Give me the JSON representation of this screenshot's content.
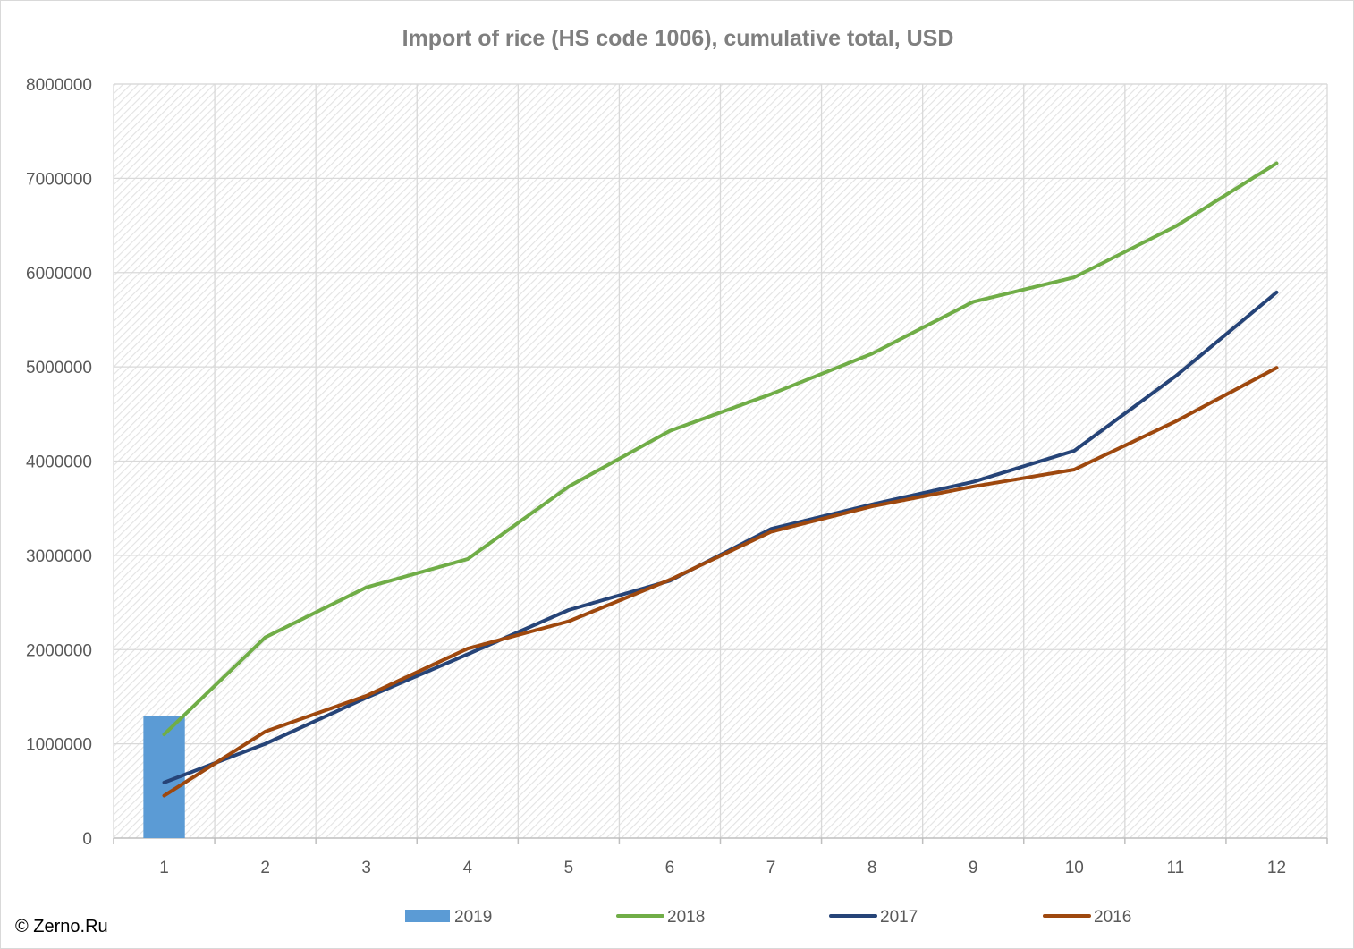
{
  "chart_data": {
    "type": "line",
    "title": "Import of rice (HS code 1006), cumulative total, USD",
    "xlabel": "",
    "ylabel": "",
    "categories": [
      "1",
      "2",
      "3",
      "4",
      "5",
      "6",
      "7",
      "8",
      "9",
      "10",
      "11",
      "12"
    ],
    "ylim": [
      0,
      8000000
    ],
    "yticks": [
      "0",
      "1000000",
      "2000000",
      "3000000",
      "4000000",
      "5000000",
      "6000000",
      "7000000",
      "8000000"
    ],
    "grid": true,
    "legend_position": "bottom",
    "series": [
      {
        "name": "2019",
        "type": "bar",
        "color": "#5b9bd5",
        "values": [
          1300000,
          null,
          null,
          null,
          null,
          null,
          null,
          null,
          null,
          null,
          null,
          null
        ]
      },
      {
        "name": "2018",
        "type": "line",
        "color": "#70ad47",
        "values": [
          1100000,
          2130000,
          2660000,
          2960000,
          3730000,
          4320000,
          4710000,
          5140000,
          5690000,
          5950000,
          6490000,
          7160000
        ]
      },
      {
        "name": "2017",
        "type": "line",
        "color": "#264478",
        "values": [
          590000,
          1000000,
          1490000,
          1950000,
          2420000,
          2730000,
          3280000,
          3540000,
          3780000,
          4110000,
          4900000,
          5790000
        ]
      },
      {
        "name": "2016",
        "type": "line",
        "color": "#9e480e",
        "values": [
          450000,
          1130000,
          1510000,
          2010000,
          2300000,
          2740000,
          3250000,
          3520000,
          3730000,
          3910000,
          4420000,
          4990000
        ]
      }
    ]
  },
  "copyright": "© Zerno.Ru"
}
